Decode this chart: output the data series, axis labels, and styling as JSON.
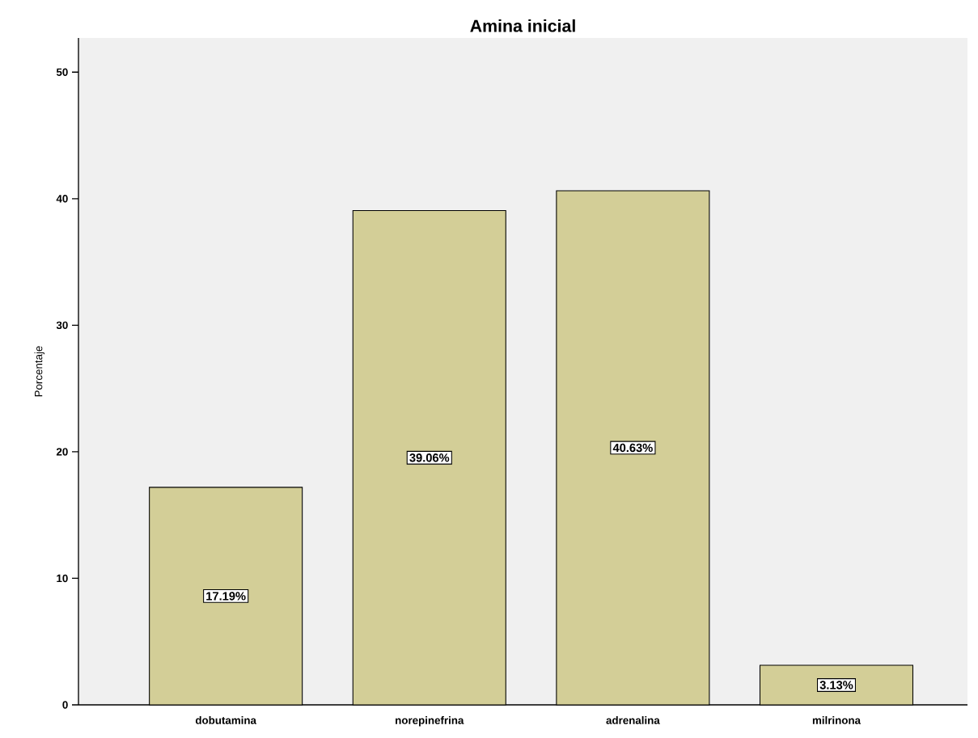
{
  "chart_data": {
    "type": "bar",
    "title": "Amina inicial",
    "ylabel": "Porcentaje",
    "categories": [
      "dobutamina",
      "norepinefrina",
      "adrenalina",
      "milrinona"
    ],
    "values": [
      17.19,
      39.06,
      40.63,
      3.13
    ],
    "value_labels": [
      "17.19%",
      "39.06%",
      "40.63%",
      "3.13%"
    ],
    "color": "#d3ce97",
    "ylim": [
      0,
      52.7
    ],
    "yticks": [
      0,
      10,
      20,
      30,
      40,
      50
    ]
  }
}
